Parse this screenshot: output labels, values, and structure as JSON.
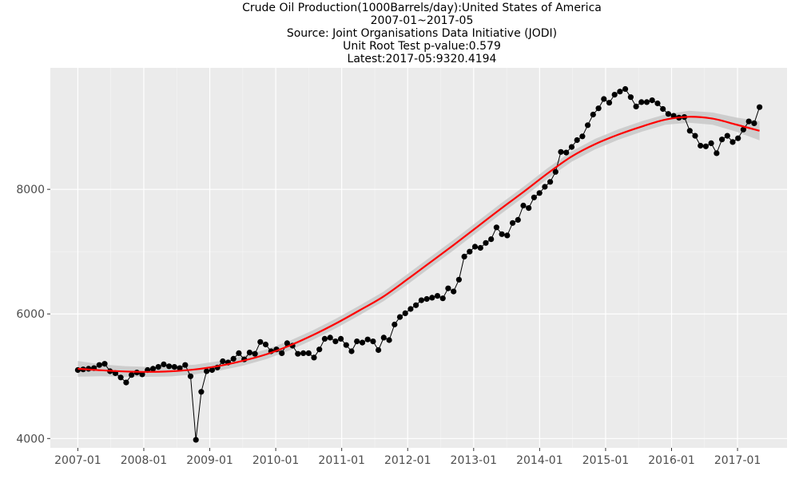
{
  "chart_data": {
    "type": "line",
    "title_lines": [
      "Crude Oil Production(1000Barrels/day):United States of America",
      "2007-01~2017-05",
      "Source: Joint Organisations Data Initiative (JODI)",
      "Unit Root Test p-value:0.579",
      "Latest:2017-05:9320.4194"
    ],
    "xlabel": "",
    "ylabel": "",
    "x_start": "2007-01",
    "x_end": "2017-05",
    "x_range": [
      "2006-08",
      "2017-10"
    ],
    "x_ticks": [
      "2007-01",
      "2008-01",
      "2009-01",
      "2010-01",
      "2011-01",
      "2012-01",
      "2013-01",
      "2014-01",
      "2015-01",
      "2016-01",
      "2017-01"
    ],
    "ylim": [
      3850,
      9950
    ],
    "y_ticks": [
      4000,
      6000,
      8000
    ],
    "grid": true,
    "legend": "none",
    "background_color": "#ebebeb",
    "series": [
      {
        "color": "#000000",
        "style": "line+points",
        "values": [
          5100,
          5110,
          5120,
          5130,
          5180,
          5200,
          5080,
          5050,
          4980,
          4900,
          5020,
          5060,
          5030,
          5100,
          5120,
          5150,
          5190,
          5160,
          5150,
          5130,
          5180,
          5000,
          3980,
          4750,
          5080,
          5100,
          5140,
          5240,
          5220,
          5280,
          5370,
          5270,
          5380,
          5360,
          5550,
          5510,
          5400,
          5430,
          5370,
          5530,
          5490,
          5360,
          5370,
          5370,
          5300,
          5430,
          5600,
          5620,
          5560,
          5600,
          5500,
          5400,
          5560,
          5540,
          5590,
          5560,
          5420,
          5620,
          5580,
          5830,
          5950,
          6010,
          6080,
          6140,
          6220,
          6240,
          6260,
          6290,
          6250,
          6410,
          6360,
          6550,
          6920,
          7000,
          7080,
          7060,
          7140,
          7200,
          7390,
          7280,
          7260,
          7460,
          7510,
          7740,
          7700,
          7870,
          7940,
          8040,
          8120,
          8280,
          8600,
          8590,
          8680,
          8790,
          8850,
          9030,
          9200,
          9300,
          9450,
          9390,
          9520,
          9570,
          9610,
          9480,
          9330,
          9400,
          9400,
          9430,
          9380,
          9290,
          9210,
          9180,
          9150,
          9160,
          8940,
          8860,
          8700,
          8690,
          8740,
          8580,
          8800,
          8860,
          8760,
          8820,
          8960,
          9090,
          9060,
          9320
        ]
      },
      {
        "color": "#ff0000",
        "style": "smooth",
        "values": [
          5120,
          5095,
          5077,
          5070,
          5080,
          5110,
          5165,
          5245,
          5350,
          5490,
          5660,
          5850,
          6060,
          6280,
          6550,
          6830,
          7110,
          7400,
          7690,
          7970,
          8260,
          8525,
          8725,
          8880,
          9010,
          9120,
          9165,
          9135,
          9040,
          8940
        ]
      },
      {
        "color": "#c8c8c8",
        "style": "band",
        "ci_lower": [
          4995,
          5000,
          4992,
          4990,
          4998,
          5033,
          5088,
          5168,
          5273,
          5413,
          5583,
          5773,
          5983,
          6203,
          6466,
          6746,
          7026,
          7316,
          7606,
          7886,
          8176,
          8441,
          8641,
          8796,
          8926,
          9036,
          9070,
          9036,
          8926,
          8786
        ],
        "ci_upper": [
          5245,
          5190,
          5162,
          5150,
          5162,
          5187,
          5242,
          5322,
          5427,
          5567,
          5737,
          5927,
          6137,
          6357,
          6634,
          6914,
          7194,
          7484,
          7774,
          8054,
          8344,
          8609,
          8809,
          8964,
          9094,
          9204,
          9260,
          9234,
          9154,
          9094
        ]
      }
    ]
  }
}
